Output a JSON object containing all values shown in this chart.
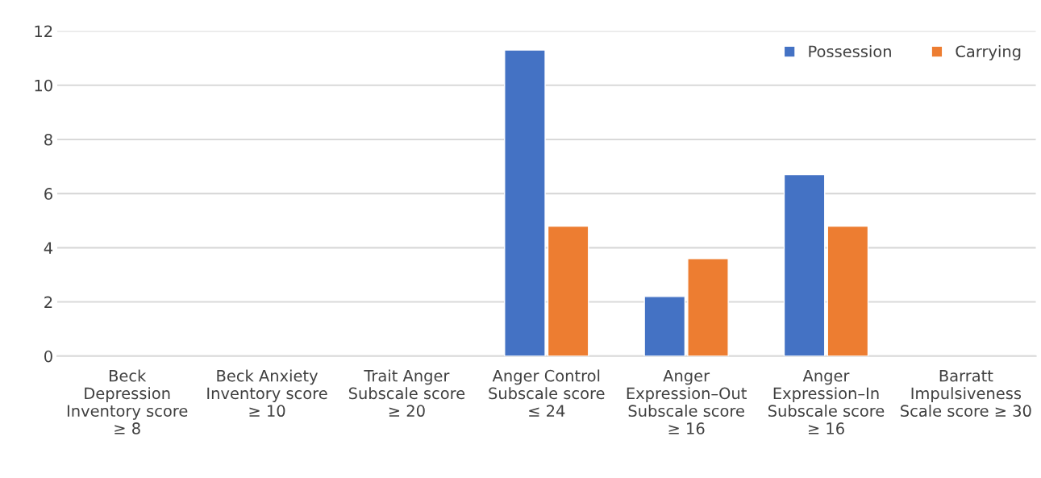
{
  "chart_data": {
    "type": "bar",
    "categories": [
      "Beck\nDepression\nInventory score\n≥ 8",
      "Beck Anxiety\nInventory score\n≥ 10",
      "Trait Anger\nSubscale score\n≥ 20",
      "Anger Control\nSubscale score\n≤ 24",
      "Anger\nExpression–Out\nSubscale score\n≥ 16",
      "Anger\nExpression–In\nSubscale score\n≥ 16",
      "Barratt\nImpulsiveness\nScale score ≥ 30"
    ],
    "series": [
      {
        "name": "Possession",
        "color": "#4472c4",
        "values": [
          null,
          null,
          null,
          11.3,
          2.2,
          6.7,
          null
        ]
      },
      {
        "name": "Carrying",
        "color": "#ed7d31",
        "values": [
          null,
          null,
          null,
          4.8,
          3.6,
          4.8,
          null
        ]
      }
    ],
    "ylim": [
      0,
      12
    ],
    "yticks": [
      0,
      2,
      4,
      6,
      8,
      10,
      12
    ],
    "grid": "y",
    "legend": "top right"
  }
}
